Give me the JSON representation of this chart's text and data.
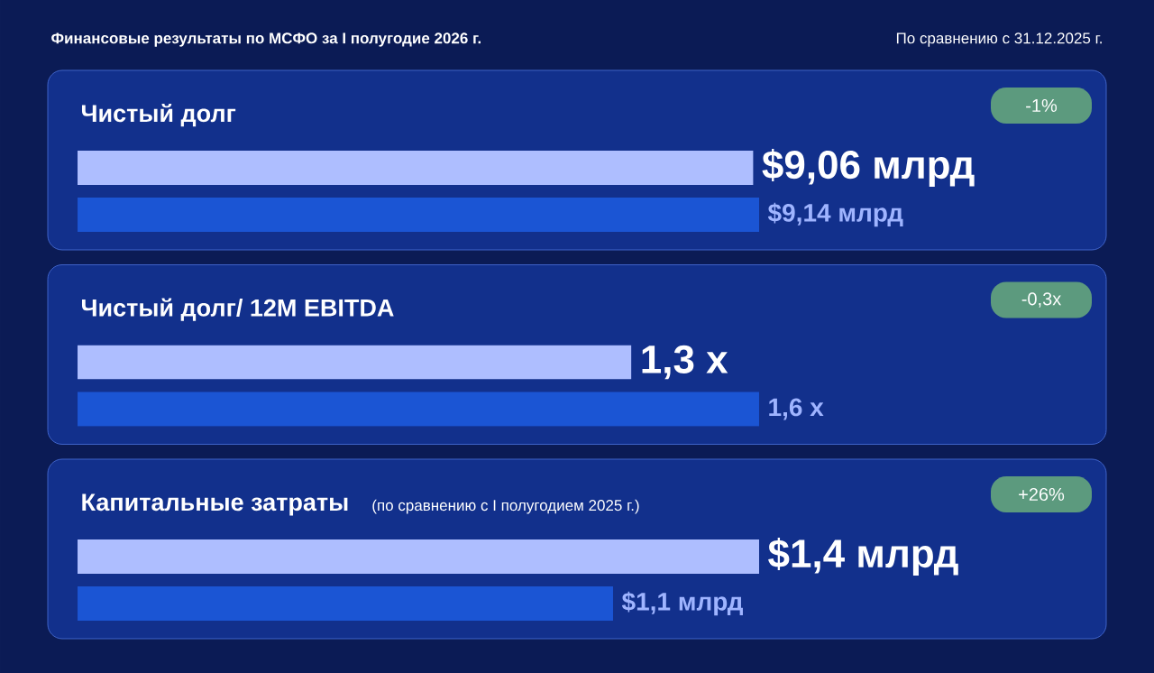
{
  "chart_data": [
    {
      "type": "other",
      "title": "Финансовые результаты по МСФО за I полугодие 2026 г.",
      "subtitle": "По сравнению с 31.12.2025 г."
    },
    {
      "type": "bar",
      "orientation": "horizontal",
      "title": "Чистый долг",
      "annotations": [
        "-1%"
      ],
      "categories": [
        null,
        null
      ],
      "values": [
        9.06,
        9.14
      ],
      "colors": [
        "#aebeff",
        "#1b55d4"
      ],
      "value_labels": [
        "$9,06 млрд",
        "$9,14 млрд"
      ]
    },
    {
      "type": "bar",
      "orientation": "horizontal",
      "title": "Чистый долг/ 12M EBITDA",
      "annotations": [
        "-0,3x"
      ],
      "categories": [
        null,
        null
      ],
      "values": [
        1.3,
        1.6
      ],
      "colors": [
        "#aebeff",
        "#1b55d4"
      ],
      "value_labels": [
        "1,3 x",
        "1,6 x"
      ]
    },
    {
      "type": "bar",
      "orientation": "horizontal",
      "title": "Капитальные затраты",
      "subtitle": "(по сравнению с I полугодием 2025 г.)",
      "annotations": [
        "+26%"
      ],
      "categories": [
        null,
        null
      ],
      "values": [
        1.4,
        1.1
      ],
      "colors": [
        "#aebeff",
        "#1b55d4"
      ],
      "value_labels": [
        "$1,4 млрд",
        "$1,1 млрд"
      ]
    }
  ]
}
